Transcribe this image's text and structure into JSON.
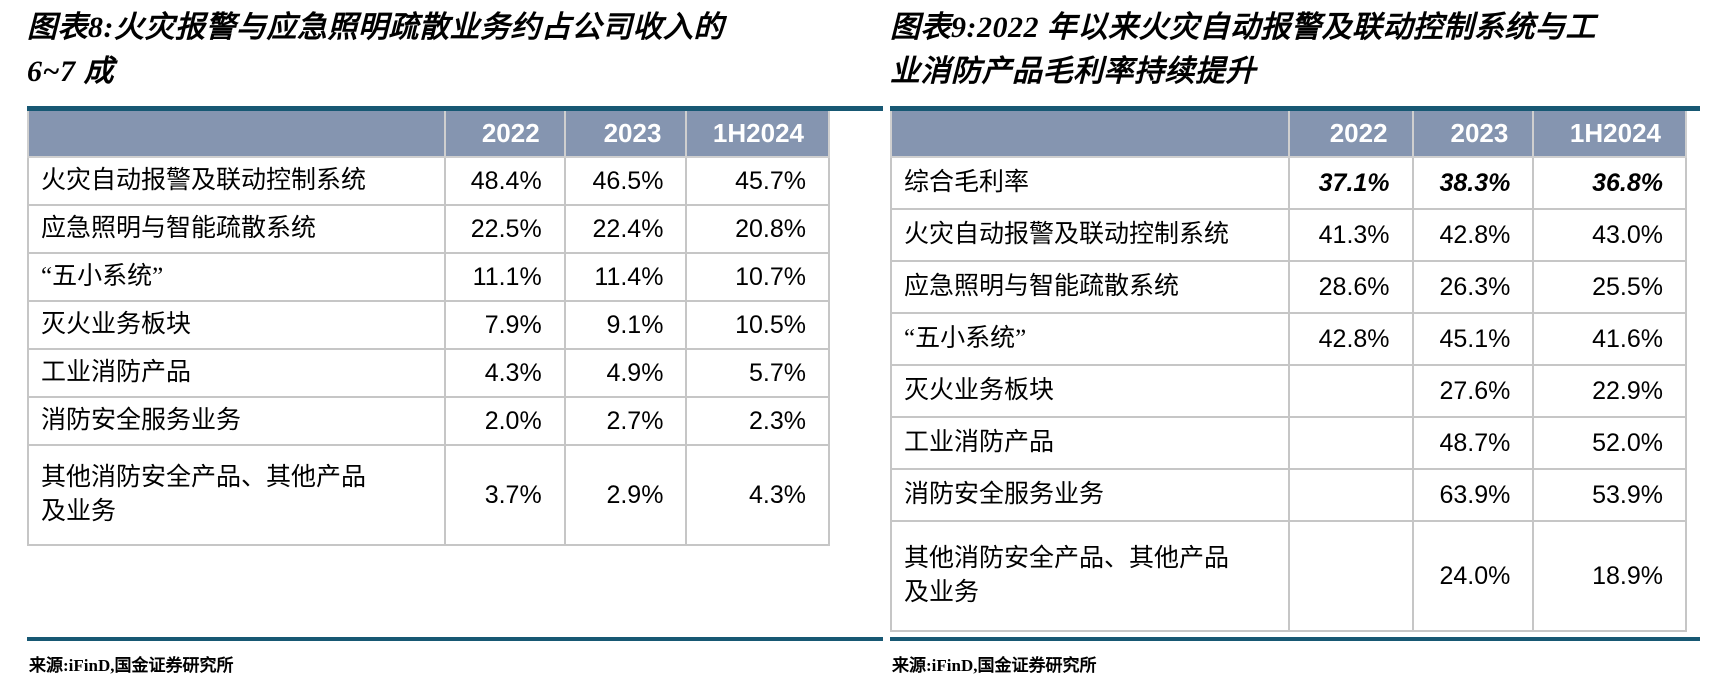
{
  "colors": {
    "rule": "#175873",
    "header_bg": "#8595B0",
    "header_text": "#ffffff",
    "table_border": "#C6C6C6",
    "text": "#000000"
  },
  "figures": [
    {
      "name": "figure-8",
      "title_lines": [
        "图表8:火灾报警与应急照明疏散业务约占公司收入的",
        "6~7 成"
      ],
      "columns": [
        "",
        "2022",
        "2023",
        "1H2024"
      ],
      "rows": [
        {
          "label": "火灾自动报警及联动控制系统",
          "values": [
            "48.4%",
            "46.5%",
            "45.7%"
          ]
        },
        {
          "label": "应急照明与智能疏散系统",
          "values": [
            "22.5%",
            "22.4%",
            "20.8%"
          ]
        },
        {
          "label": "“五小系统”",
          "values": [
            "11.1%",
            "11.4%",
            "10.7%"
          ]
        },
        {
          "label": "灭火业务板块",
          "values": [
            "7.9%",
            "9.1%",
            "10.5%"
          ]
        },
        {
          "label": "工业消防产品",
          "values": [
            "4.3%",
            "4.9%",
            "5.7%"
          ]
        },
        {
          "label": "消防安全服务业务",
          "values": [
            "2.0%",
            "2.7%",
            "2.3%"
          ]
        },
        {
          "label": "其他消防安全产品、其他产品\n及业务",
          "values": [
            "3.7%",
            "2.9%",
            "4.3%"
          ]
        }
      ],
      "source": "来源:iFinD,国金证券研究所"
    },
    {
      "name": "figure-9",
      "title_lines": [
        "图表9:2022 年以来火灾自动报警及联动控制系统与工",
        "业消防产品毛利率持续提升"
      ],
      "columns": [
        "",
        "2022",
        "2023",
        "1H2024"
      ],
      "rows": [
        {
          "label": "综合毛利率",
          "values": [
            "37.1%",
            "38.3%",
            "36.8%"
          ],
          "emphasis": true
        },
        {
          "label": "火灾自动报警及联动控制系统",
          "values": [
            "41.3%",
            "42.8%",
            "43.0%"
          ]
        },
        {
          "label": "应急照明与智能疏散系统",
          "values": [
            "28.6%",
            "26.3%",
            "25.5%"
          ]
        },
        {
          "label": "“五小系统”",
          "values": [
            "42.8%",
            "45.1%",
            "41.6%"
          ]
        },
        {
          "label": "灭火业务板块",
          "values": [
            "",
            "27.6%",
            "22.9%"
          ]
        },
        {
          "label": "工业消防产品",
          "values": [
            "",
            "48.7%",
            "52.0%"
          ]
        },
        {
          "label": "消防安全服务业务",
          "values": [
            "",
            "63.9%",
            "53.9%"
          ]
        },
        {
          "label": "其他消防安全产品、其他产品\n及业务",
          "values": [
            "",
            "24.0%",
            "18.9%"
          ]
        }
      ],
      "source": "来源:iFinD,国金证券研究所"
    }
  ]
}
